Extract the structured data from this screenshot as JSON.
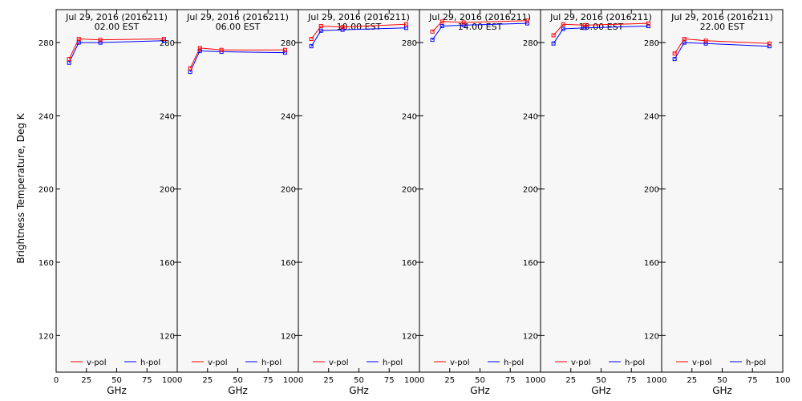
{
  "chart_data": {
    "type": "line",
    "ylabel": "Brightness Temperature, Deg K",
    "xlabel": "GHz",
    "xlim": [
      0,
      100
    ],
    "ylim": [
      100,
      298
    ],
    "yticks": [
      120,
      160,
      200,
      240,
      280
    ],
    "xtick_labels": [
      "0",
      "25",
      "50",
      "75",
      "100"
    ],
    "legend": {
      "placement": "bottom",
      "v_label": "v-pol",
      "h_label": "h-pol"
    },
    "colors": {
      "v-pol": "#ff0000",
      "h-pol": "#0000ff",
      "panel_bg": "#f7f7f7"
    },
    "panels": [
      {
        "title": "Jul 29, 2016 (2016211)",
        "subtitle": "02.00 EST",
        "series": [
          {
            "name": "v-pol",
            "x": [
              10.7,
              18.7,
              36.5,
              89.0
            ],
            "y": [
              271,
              282,
              281.5,
              282
            ]
          },
          {
            "name": "h-pol",
            "x": [
              10.7,
              18.7,
              36.5,
              89.0
            ],
            "y": [
              269,
              280,
              280,
              281
            ]
          }
        ]
      },
      {
        "title": "Jul 29, 2016 (2016211)",
        "subtitle": "06.00 EST",
        "series": [
          {
            "name": "v-pol",
            "x": [
              10.7,
              18.7,
              36.5,
              89.0
            ],
            "y": [
              266,
              277,
              276,
              276
            ]
          },
          {
            "name": "h-pol",
            "x": [
              10.7,
              18.7,
              36.5,
              89.0
            ],
            "y": [
              264,
              275.5,
              275,
              274.5
            ]
          }
        ]
      },
      {
        "title": "Jul 29, 2016 (2016211)",
        "subtitle": "10.00 EST",
        "series": [
          {
            "name": "v-pol",
            "x": [
              10.7,
              18.7,
              36.5,
              89.0
            ],
            "y": [
              282,
              289,
              288.5,
              290
            ]
          },
          {
            "name": "h-pol",
            "x": [
              10.7,
              18.7,
              36.5,
              89.0
            ],
            "y": [
              278,
              286.5,
              287,
              288
            ]
          }
        ]
      },
      {
        "title": "Jul 29, 2016 (2016211)",
        "subtitle": "14.00 EST",
        "series": [
          {
            "name": "v-pol",
            "x": [
              10.7,
              18.7,
              36.5,
              89.0
            ],
            "y": [
              286,
              291.5,
              291,
              292
            ]
          },
          {
            "name": "h-pol",
            "x": [
              10.7,
              18.7,
              36.5,
              89.0
            ],
            "y": [
              281.5,
              289,
              289.5,
              290.5
            ]
          }
        ]
      },
      {
        "title": "Jul 29, 2016 (2016211)",
        "subtitle": "18.00 EST",
        "series": [
          {
            "name": "v-pol",
            "x": [
              10.7,
              18.7,
              36.5,
              89.0
            ],
            "y": [
              284,
              290,
              289.5,
              290.5
            ]
          },
          {
            "name": "h-pol",
            "x": [
              10.7,
              18.7,
              36.5,
              89.0
            ],
            "y": [
              279.5,
              287.5,
              288,
              289
            ]
          }
        ]
      },
      {
        "title": "Jul 29, 2016 (2016211)",
        "subtitle": "22.00 EST",
        "series": [
          {
            "name": "v-pol",
            "x": [
              10.7,
              18.7,
              36.5,
              89.0
            ],
            "y": [
              274,
              282,
              281,
              279.5
            ]
          },
          {
            "name": "h-pol",
            "x": [
              10.7,
              18.7,
              36.5,
              89.0
            ],
            "y": [
              271,
              280,
              279.5,
              278
            ]
          }
        ]
      }
    ]
  }
}
